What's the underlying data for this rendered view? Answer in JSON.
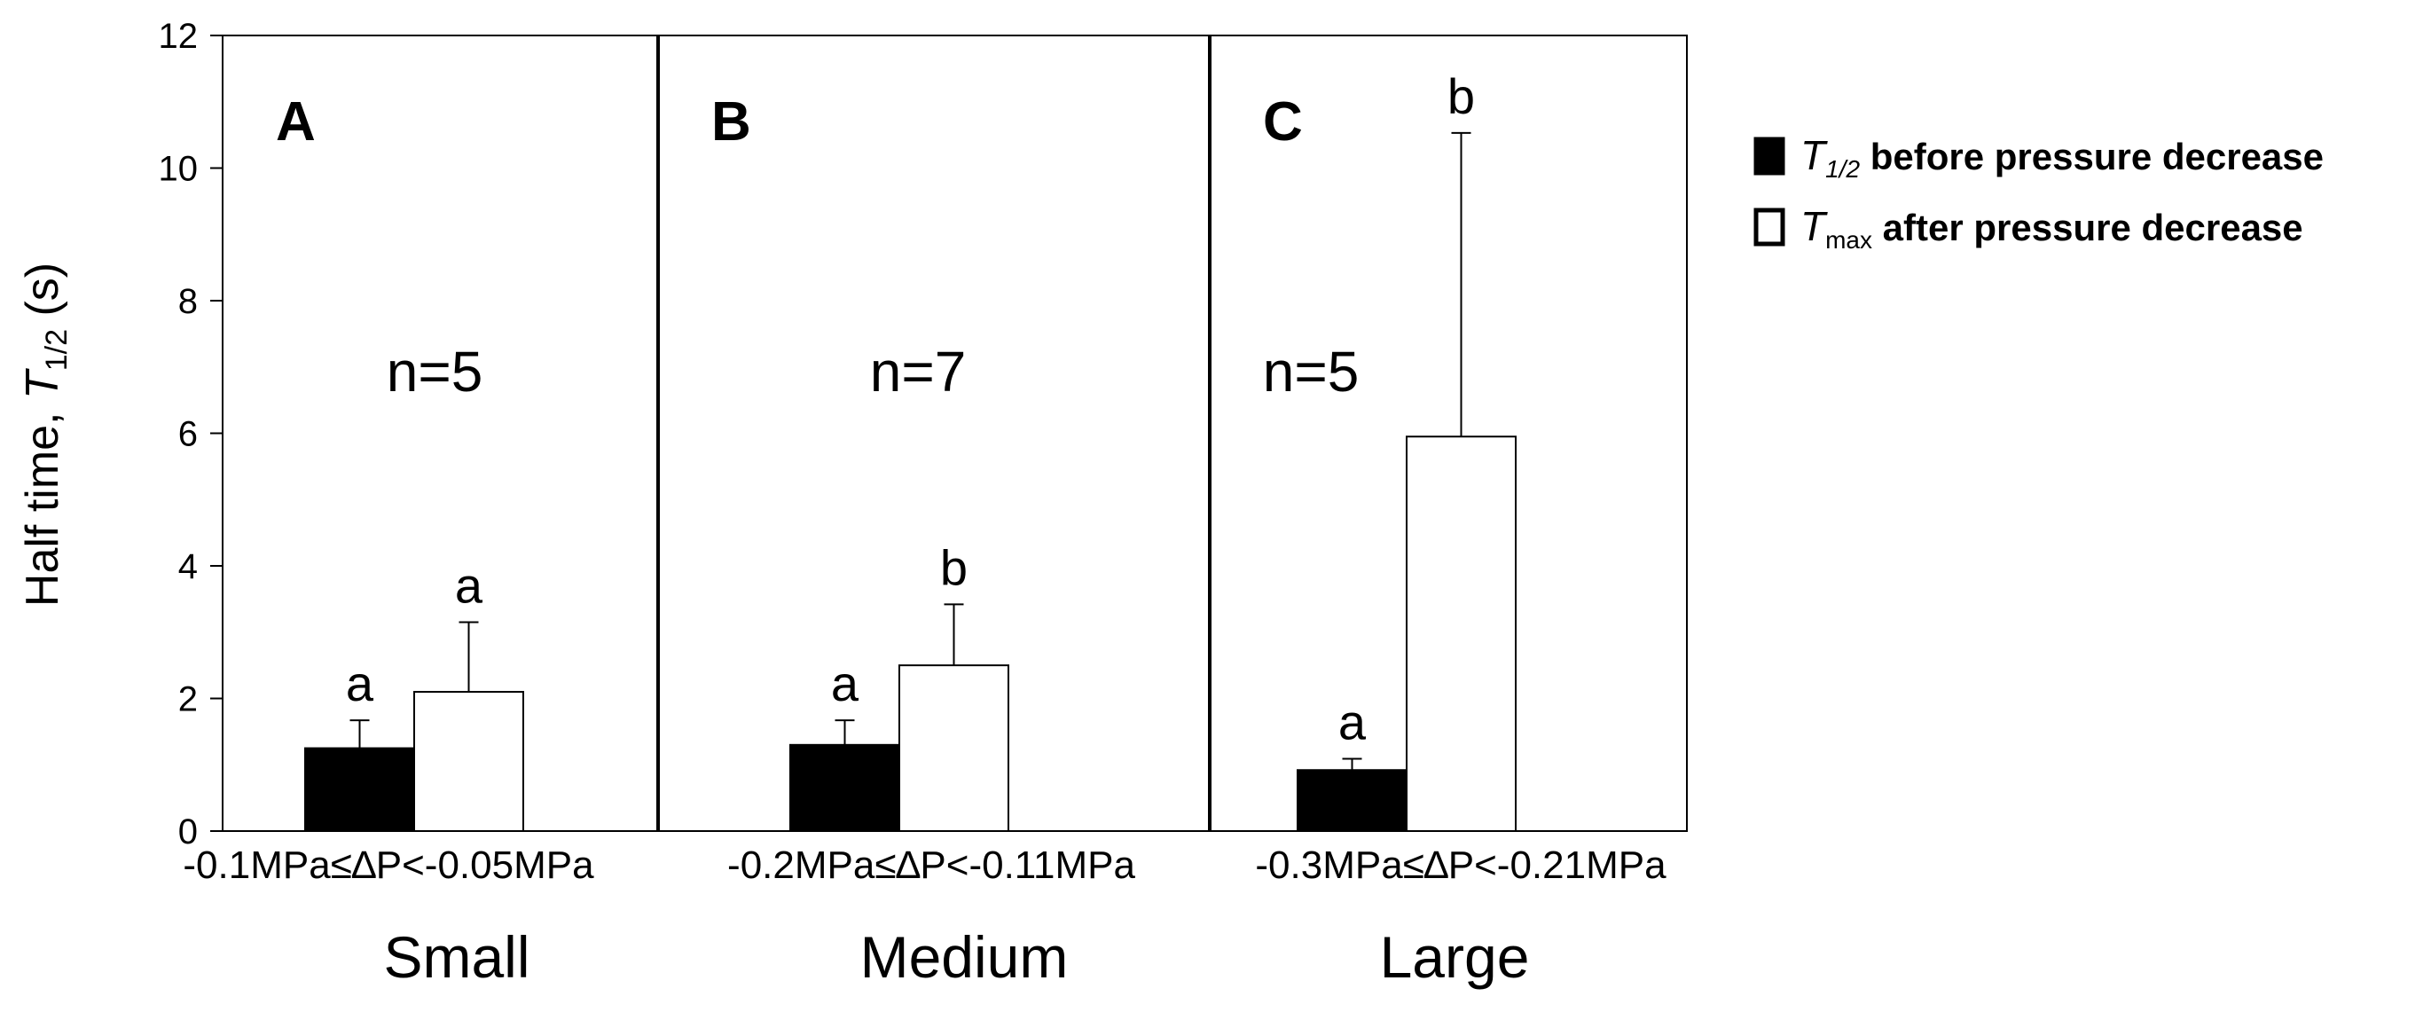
{
  "chart_data": {
    "type": "bar",
    "ylabel": "Half time, ",
    "ylabel_symbol": "T",
    "ylabel_sub": "1/2",
    "ylabel_unit": " (s)",
    "ylim": [
      0,
      12
    ],
    "yticks": [
      0,
      2,
      4,
      6,
      8,
      10,
      12
    ],
    "grid": false,
    "legend_position": "right",
    "legend": [
      {
        "symbol": "T",
        "sub": "1/2",
        "text": " before pressure decrease",
        "fill": "#000000"
      },
      {
        "symbol": "T",
        "sub": "max",
        "text": " after pressure decrease",
        "fill": "#ffffff"
      }
    ],
    "series": [
      {
        "name": "T1/2 before pressure decrease",
        "color": "#000000"
      },
      {
        "name": "Tmax after pressure decrease",
        "color": "#ffffff"
      }
    ],
    "panels": [
      {
        "label": "A",
        "n_text": "n=5",
        "range_label": "-0.1MPa≤∆P<-0.05MPa",
        "category": "Small",
        "values": [
          1.25,
          2.1
        ],
        "errors": [
          0.42,
          1.05
        ],
        "letters": [
          "a",
          "a"
        ]
      },
      {
        "label": "B",
        "n_text": "n=7",
        "range_label": "-0.2MPa≤∆P<-0.11MPa",
        "category": "Medium",
        "values": [
          1.3,
          2.5
        ],
        "errors": [
          0.37,
          0.92
        ],
        "letters": [
          "a",
          "b"
        ]
      },
      {
        "label": "C",
        "n_text": "n=5",
        "range_label": "-0.3MPa≤∆P<-0.21MPa",
        "category": "Large",
        "values": [
          0.92,
          5.95
        ],
        "errors": [
          0.17,
          4.58
        ],
        "letters": [
          "a",
          "b"
        ]
      }
    ]
  }
}
